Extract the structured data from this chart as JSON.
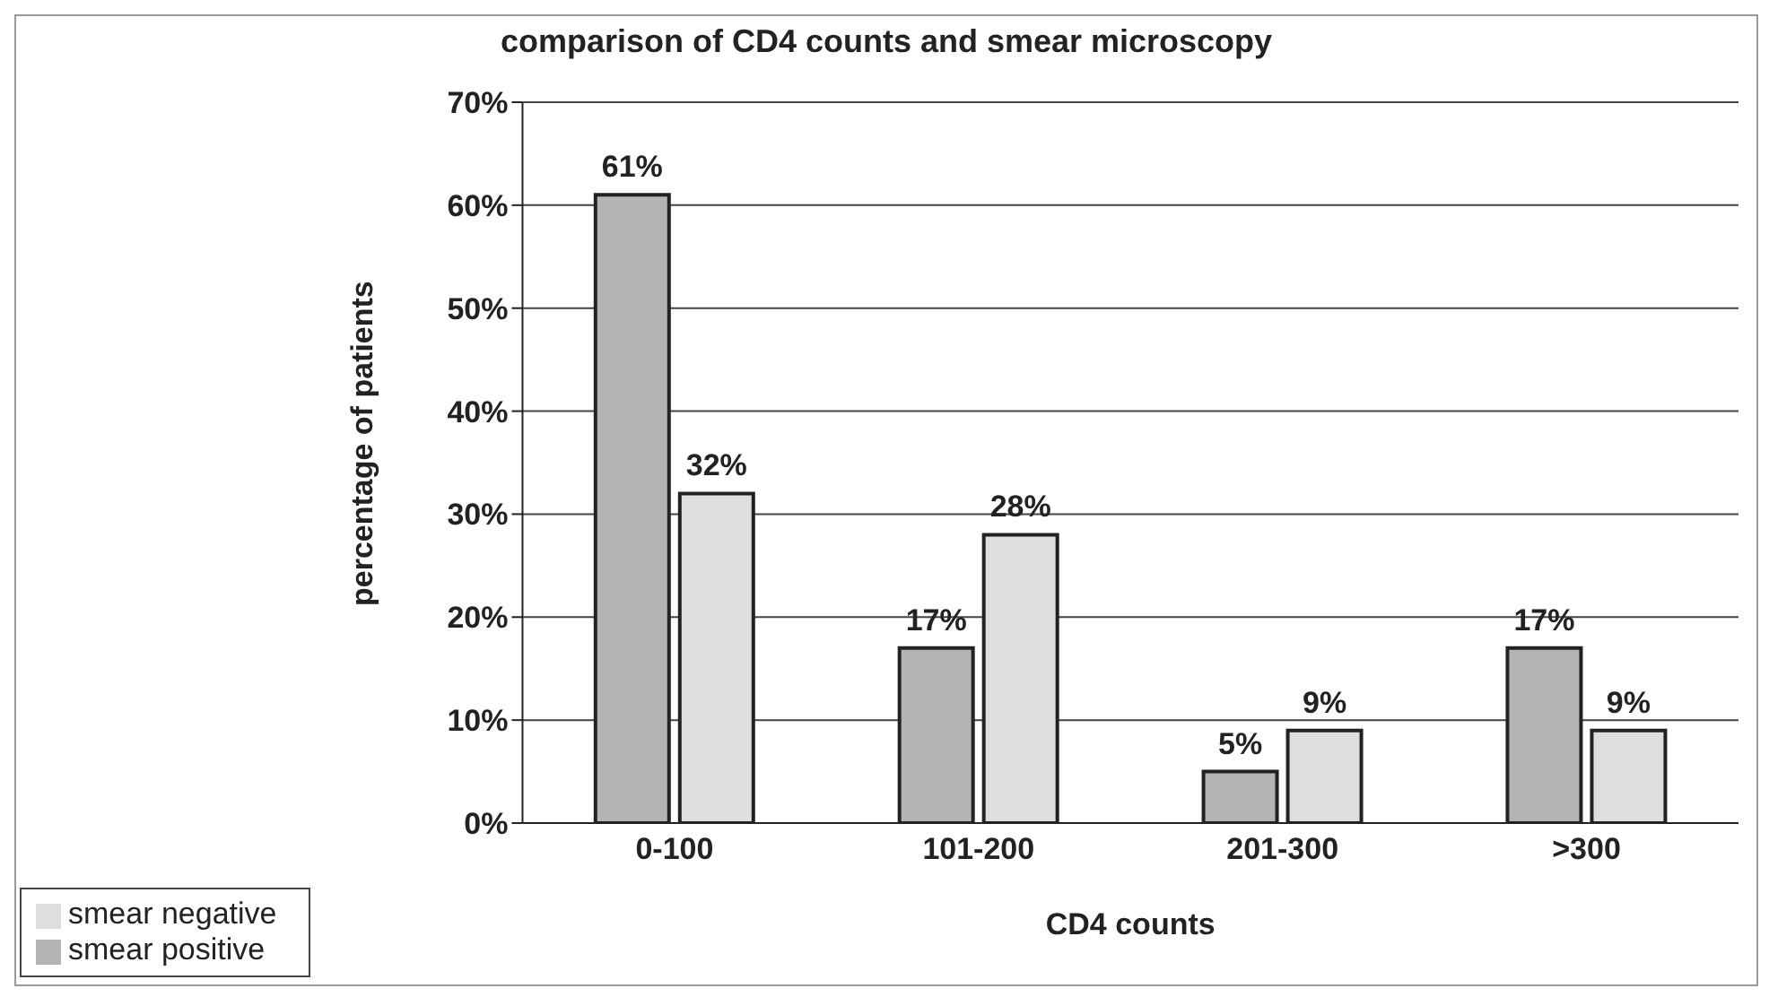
{
  "chart_data": {
    "type": "bar",
    "title": "comparison of CD4 counts and smear microscopy",
    "xlabel": "CD4 counts",
    "ylabel": "percentage of patients",
    "categories": [
      "0-100",
      "101-200",
      "201-300",
      ">300"
    ],
    "series": [
      {
        "name": "smear positive",
        "color": "#b4b4b4",
        "values": [
          61,
          17,
          5,
          17
        ],
        "value_labels": [
          "61%",
          "17%",
          "5%",
          "17%"
        ]
      },
      {
        "name": "smear negative",
        "color": "#dedede",
        "values": [
          32,
          28,
          9,
          9
        ],
        "value_labels": [
          "32%",
          "28%",
          "9%",
          "9%"
        ]
      }
    ],
    "ylim": [
      0,
      70
    ],
    "yticks": [
      {
        "value": 0,
        "label": "0%"
      },
      {
        "value": 10,
        "label": "10%"
      },
      {
        "value": 20,
        "label": "20%"
      },
      {
        "value": 30,
        "label": "30%"
      },
      {
        "value": 40,
        "label": "40%"
      },
      {
        "value": 50,
        "label": "50%"
      },
      {
        "value": 60,
        "label": "60%"
      },
      {
        "value": 70,
        "label": "70%"
      }
    ],
    "grid": "y",
    "legend": "bottom left"
  }
}
